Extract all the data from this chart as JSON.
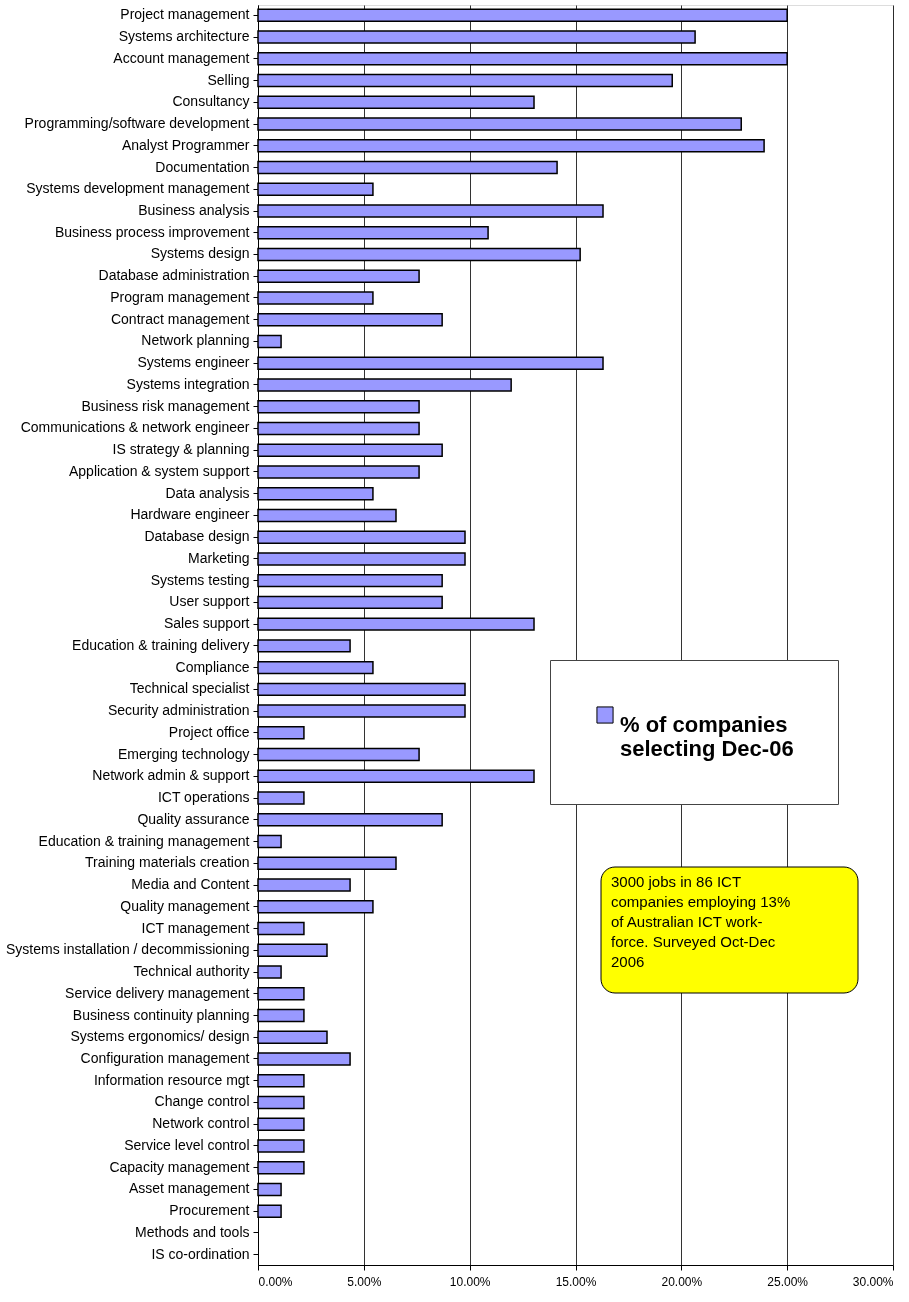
{
  "chart_data": {
    "type": "bar",
    "orientation": "horizontal",
    "categories": [
      "Project management",
      "Systems architecture",
      "Account management",
      "Selling",
      "Consultancy",
      "Programming/software development",
      "Analyst Programmer",
      "Documentation",
      "Systems development management",
      "Business analysis",
      "Business process improvement",
      "Systems design",
      "Database administration",
      "Program management",
      "Contract management",
      "Network planning",
      "Systems engineer",
      "Systems integration",
      "Business risk management",
      "Communications & network engineer",
      "IS strategy & planning",
      "Application & system support",
      "Data analysis",
      "Hardware engineer",
      "Database design",
      "Marketing",
      "Systems testing",
      "User support",
      "Sales support",
      "Education & training delivery",
      "Compliance",
      "Technical specialist",
      "Security administration",
      "Project office",
      "Emerging technology ",
      "Network admin & support",
      "ICT operations",
      "Quality assurance",
      "Education & training management",
      "Training materials creation",
      "Media and Content",
      "Quality management",
      "ICT management",
      "Systems installation / decommissioning",
      "Technical authority",
      "Service delivery management",
      "Business continuity planning",
      "Systems ergonomics/ design",
      "Configuration management",
      "Information resource mgt",
      "Change control",
      "Network control",
      "Service level control",
      "Capacity management",
      "Asset management",
      "Procurement",
      "Methods and tools",
      "IS co-ordination"
    ],
    "series": [
      {
        "name": "% of companies selecting Dec-06",
        "color": "#9999ff",
        "values": [
          25.0,
          20.65,
          25.0,
          19.57,
          13.04,
          22.83,
          23.91,
          14.13,
          5.43,
          16.3,
          10.87,
          15.22,
          7.61,
          5.43,
          8.7,
          1.09,
          16.3,
          11.96,
          7.61,
          7.61,
          8.7,
          7.61,
          5.43,
          6.52,
          9.78,
          9.78,
          8.7,
          8.7,
          13.04,
          4.35,
          5.43,
          9.78,
          9.78,
          2.17,
          7.61,
          13.04,
          2.17,
          8.7,
          1.09,
          6.52,
          4.35,
          5.43,
          2.17,
          3.26,
          1.09,
          2.17,
          2.17,
          3.26,
          4.35,
          2.17,
          2.17,
          2.17,
          2.17,
          2.17,
          1.09,
          1.09,
          0,
          0
        ]
      }
    ],
    "xlim": [
      0,
      30
    ],
    "xticks": [
      {
        "value": 0,
        "label": "0.00%"
      },
      {
        "value": 5,
        "label": "5.00%"
      },
      {
        "value": 10,
        "label": "10.00%"
      },
      {
        "value": 15,
        "label": "15.00%"
      },
      {
        "value": 20,
        "label": "20.00%"
      },
      {
        "value": 25,
        "label": "25.00%"
      },
      {
        "value": 30,
        "label": "30.00%"
      }
    ],
    "grid": "x",
    "legend": "right",
    "annotations": [
      "3000 jobs in 86 ICT companies employing 13% of Australian ICT work-force. Surveyed Oct-Dec 2006"
    ]
  }
}
